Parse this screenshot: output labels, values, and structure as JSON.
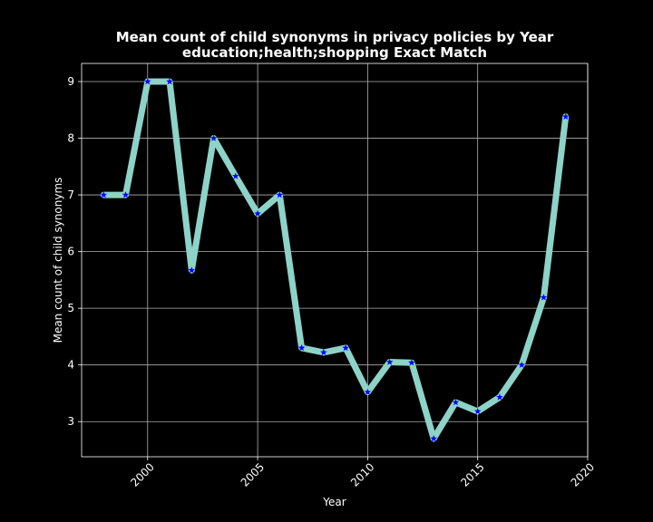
{
  "chart_data": {
    "type": "line",
    "title": "Mean count of child synonyms in privacy policies by Year",
    "subtitle": "education;health;shopping Exact Match",
    "xlabel": "Year",
    "ylabel": "Mean count of child synonyms",
    "xlim": [
      1997,
      2020
    ],
    "ylim": [
      2.38,
      9.32
    ],
    "xticks": [
      2000,
      2005,
      2010,
      2015,
      2020
    ],
    "yticks": [
      3,
      4,
      5,
      6,
      7,
      8,
      9
    ],
    "grid": true,
    "legend": "none",
    "colors": {
      "background": "#000000",
      "line": "#8dd3c7",
      "marker": "#0000ff",
      "grid": "#b0b0b0",
      "text": "#ffffff"
    },
    "series": [
      {
        "x": [
          1998,
          1999,
          2000,
          2001,
          2002,
          2003,
          2004,
          2005,
          2006,
          2007,
          2008,
          2009,
          2010,
          2011,
          2012,
          2013,
          2014,
          2015,
          2016,
          2017,
          2018,
          2019
        ],
        "values": [
          7.0,
          7.0,
          9.0,
          9.0,
          5.67,
          8.0,
          7.33,
          6.67,
          7.0,
          4.3,
          4.22,
          4.3,
          3.52,
          4.05,
          4.04,
          2.7,
          3.34,
          3.18,
          3.43,
          4.0,
          5.19,
          8.38
        ],
        "marker": "star"
      }
    ]
  }
}
